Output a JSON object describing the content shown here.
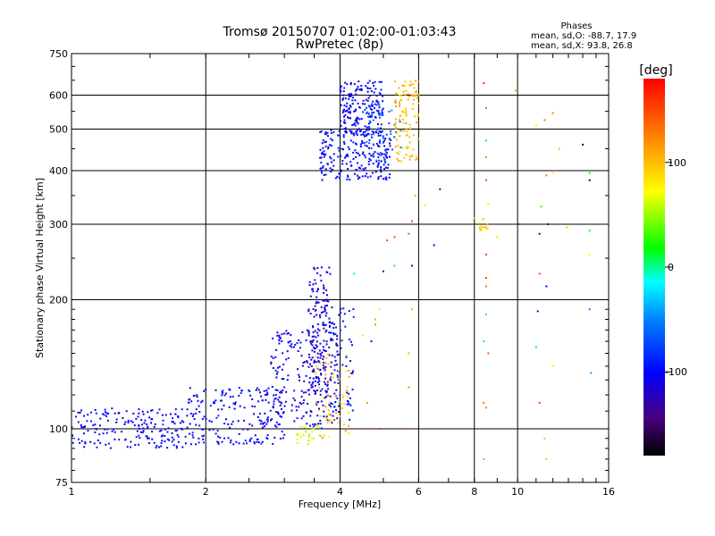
{
  "chart_data": {
    "type": "scatter",
    "title": "Tromsø 20150707 01:02:00-01:03:43",
    "subtitle": "RwPretec (8p)",
    "xlabel": "Frequency [MHz]",
    "ylabel": "Stationary phase Virtual Height [km]",
    "x_scale": "log2",
    "y_scale": "log",
    "xlim": [
      1,
      16
    ],
    "ylim": [
      75,
      750
    ],
    "x_ticks": [
      1,
      2,
      4,
      6,
      8,
      10,
      16
    ],
    "x_tick_labels": [
      "1",
      "2",
      "4",
      "6",
      "8",
      "10",
      "16"
    ],
    "y_ticks": [
      75,
      100,
      200,
      300,
      400,
      500,
      600,
      750
    ],
    "y_tick_labels": [
      "75",
      "100",
      "200",
      "300",
      "400",
      "500",
      "600",
      "750"
    ],
    "grid": true,
    "stats": {
      "title": "Phases",
      "line_o": "mean, sd,O: -88.7, 17.9",
      "line_x": "mean, sd,X:  93.8, 26.8"
    },
    "colorbar": {
      "label": "[deg]",
      "range": [
        -180,
        180
      ],
      "ticks": [
        100,
        0,
        -100
      ],
      "tick_labels": [
        "100",
        "0",
        "-100"
      ]
    },
    "clusters": [
      {
        "f_min": 1.0,
        "f_max": 1.8,
        "h_min": 90,
        "h_max": 112,
        "phase_mean": -100,
        "phase_sd": 15,
        "count": 180
      },
      {
        "f_min": 1.8,
        "f_max": 3.0,
        "h_min": 92,
        "h_max": 125,
        "phase_mean": -100,
        "phase_sd": 18,
        "count": 200
      },
      {
        "f_min": 2.8,
        "f_max": 4.0,
        "h_min": 100,
        "h_max": 170,
        "phase_mean": -110,
        "phase_sd": 25,
        "count": 220
      },
      {
        "f_min": 3.4,
        "f_max": 3.8,
        "h_min": 120,
        "h_max": 240,
        "phase_mean": -110,
        "phase_sd": 15,
        "count": 150
      },
      {
        "f_min": 3.8,
        "f_max": 4.3,
        "h_min": 110,
        "h_max": 195,
        "phase_mean": -100,
        "phase_sd": 20,
        "count": 60
      },
      {
        "f_min": 3.6,
        "f_max": 5.2,
        "h_min": 380,
        "h_max": 500,
        "phase_mean": -100,
        "phase_sd": 15,
        "count": 220
      },
      {
        "f_min": 4.0,
        "f_max": 5.0,
        "h_min": 480,
        "h_max": 650,
        "phase_mean": -100,
        "phase_sd": 15,
        "count": 180
      },
      {
        "f_min": 4.5,
        "f_max": 5.5,
        "h_min": 420,
        "h_max": 580,
        "phase_mean": -70,
        "phase_sd": 25,
        "count": 60
      },
      {
        "f_min": 5.3,
        "f_max": 6.0,
        "h_min": 420,
        "h_max": 650,
        "phase_mean": 100,
        "phase_sd": 15,
        "count": 110
      },
      {
        "f_min": 3.5,
        "f_max": 4.2,
        "h_min": 95,
        "h_max": 150,
        "phase_mean": 100,
        "phase_sd": 20,
        "count": 60
      },
      {
        "f_min": 3.2,
        "f_max": 3.7,
        "h_min": 92,
        "h_max": 102,
        "phase_mean": 60,
        "phase_sd": 30,
        "count": 25
      },
      {
        "f_min": 8.2,
        "f_max": 8.6,
        "h_min": 290,
        "h_max": 310,
        "phase_mean": 90,
        "phase_sd": 30,
        "count": 15
      }
    ],
    "scattered_points": [
      [
        8.4,
        640,
        160
      ],
      [
        8.5,
        560,
        140
      ],
      [
        8.5,
        470,
        20
      ],
      [
        8.5,
        430,
        120
      ],
      [
        8.5,
        380,
        150
      ],
      [
        8.6,
        335,
        60
      ],
      [
        8.5,
        255,
        150
      ],
      [
        8.5,
        225,
        150
      ],
      [
        8.5,
        215,
        130
      ],
      [
        8.5,
        185,
        10
      ],
      [
        8.4,
        160,
        10
      ],
      [
        8.6,
        150,
        140
      ],
      [
        8.4,
        115,
        130
      ],
      [
        8.5,
        112,
        130
      ],
      [
        8.4,
        85,
        120
      ],
      [
        9.9,
        615,
        110
      ],
      [
        11.5,
        525,
        130
      ],
      [
        12.0,
        545,
        130
      ],
      [
        11.0,
        510,
        80
      ],
      [
        12.4,
        450,
        100
      ],
      [
        11.6,
        390,
        130
      ],
      [
        11.3,
        330,
        30
      ],
      [
        12.0,
        395,
        80
      ],
      [
        11.7,
        300,
        -150
      ],
      [
        11.2,
        285,
        -150
      ],
      [
        11.2,
        230,
        150
      ],
      [
        11.6,
        215,
        -100
      ],
      [
        11.1,
        188,
        -120
      ],
      [
        11.0,
        155,
        20
      ],
      [
        12.0,
        140,
        80
      ],
      [
        11.2,
        115,
        150
      ],
      [
        11.5,
        95,
        100
      ],
      [
        11.6,
        85,
        100
      ],
      [
        14.0,
        460,
        -170
      ],
      [
        14.5,
        380,
        -170
      ],
      [
        14.5,
        395,
        20
      ],
      [
        14.5,
        290,
        20
      ],
      [
        14.5,
        255,
        80
      ],
      [
        14.5,
        190,
        -50
      ],
      [
        14.6,
        135,
        -40
      ],
      [
        6.2,
        332,
        60
      ],
      [
        5.7,
        285,
        140
      ],
      [
        5.8,
        240,
        -120
      ],
      [
        5.8,
        190,
        40
      ],
      [
        5.7,
        150,
        100
      ],
      [
        5.7,
        125,
        120
      ],
      [
        5.7,
        100,
        140
      ],
      [
        5.8,
        305,
        150
      ],
      [
        5.9,
        350,
        40
      ],
      [
        6.7,
        362,
        -150
      ],
      [
        6.5,
        268,
        -100
      ],
      [
        8.0,
        310,
        100
      ],
      [
        9.0,
        280,
        60
      ],
      [
        10.1,
        300,
        -60
      ],
      [
        12.9,
        295,
        100
      ],
      [
        5.3,
        280,
        150
      ],
      [
        5.1,
        275,
        150
      ],
      [
        5.0,
        233,
        -120
      ],
      [
        5.3,
        240,
        20
      ],
      [
        4.8,
        180,
        110
      ],
      [
        4.9,
        190,
        80
      ],
      [
        4.8,
        175,
        120
      ],
      [
        4.7,
        160,
        -100
      ],
      [
        4.5,
        165,
        80
      ],
      [
        4.4,
        100,
        140
      ],
      [
        4.2,
        105,
        -100
      ],
      [
        4.6,
        115,
        120
      ],
      [
        4.3,
        230,
        -20
      ],
      [
        4.9,
        100,
        160
      ],
      [
        5.6,
        630,
        80
      ]
    ]
  }
}
